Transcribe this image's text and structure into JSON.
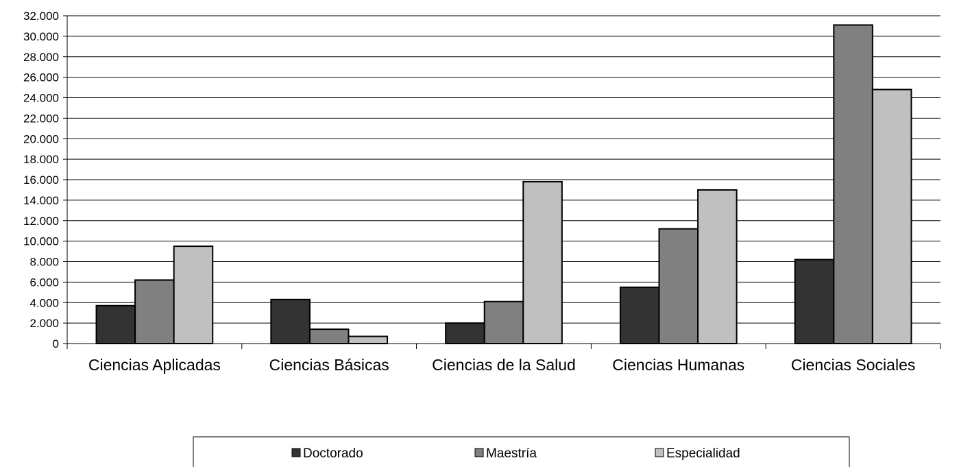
{
  "chart_data": {
    "type": "bar",
    "title": "",
    "xlabel": "",
    "ylabel": "",
    "ylim": [
      0,
      32000
    ],
    "y_ticks": [
      "0",
      "2.000",
      "4.000",
      "6.000",
      "8.000",
      "10.000",
      "12.000",
      "14.000",
      "16.000",
      "18.000",
      "20.000",
      "22.000",
      "24.000",
      "26.000",
      "28.000",
      "30.000",
      "32.000"
    ],
    "grid": true,
    "legend_position": "bottom",
    "categories": [
      "Ciencias Aplicadas",
      "Ciencias Básicas",
      "Ciencias de la Salud",
      "Ciencias Humanas",
      "Ciencias Sociales"
    ],
    "series": [
      {
        "name": "Doctorado",
        "color": "#333333",
        "values": [
          3700,
          4300,
          2000,
          5500,
          8200
        ]
      },
      {
        "name": "Maestría",
        "color": "#808080",
        "values": [
          6200,
          1400,
          4100,
          11200,
          31100
        ]
      },
      {
        "name": "Especialidad",
        "color": "#c0c0c0",
        "values": [
          9500,
          700,
          15800,
          15000,
          24800
        ]
      }
    ]
  }
}
